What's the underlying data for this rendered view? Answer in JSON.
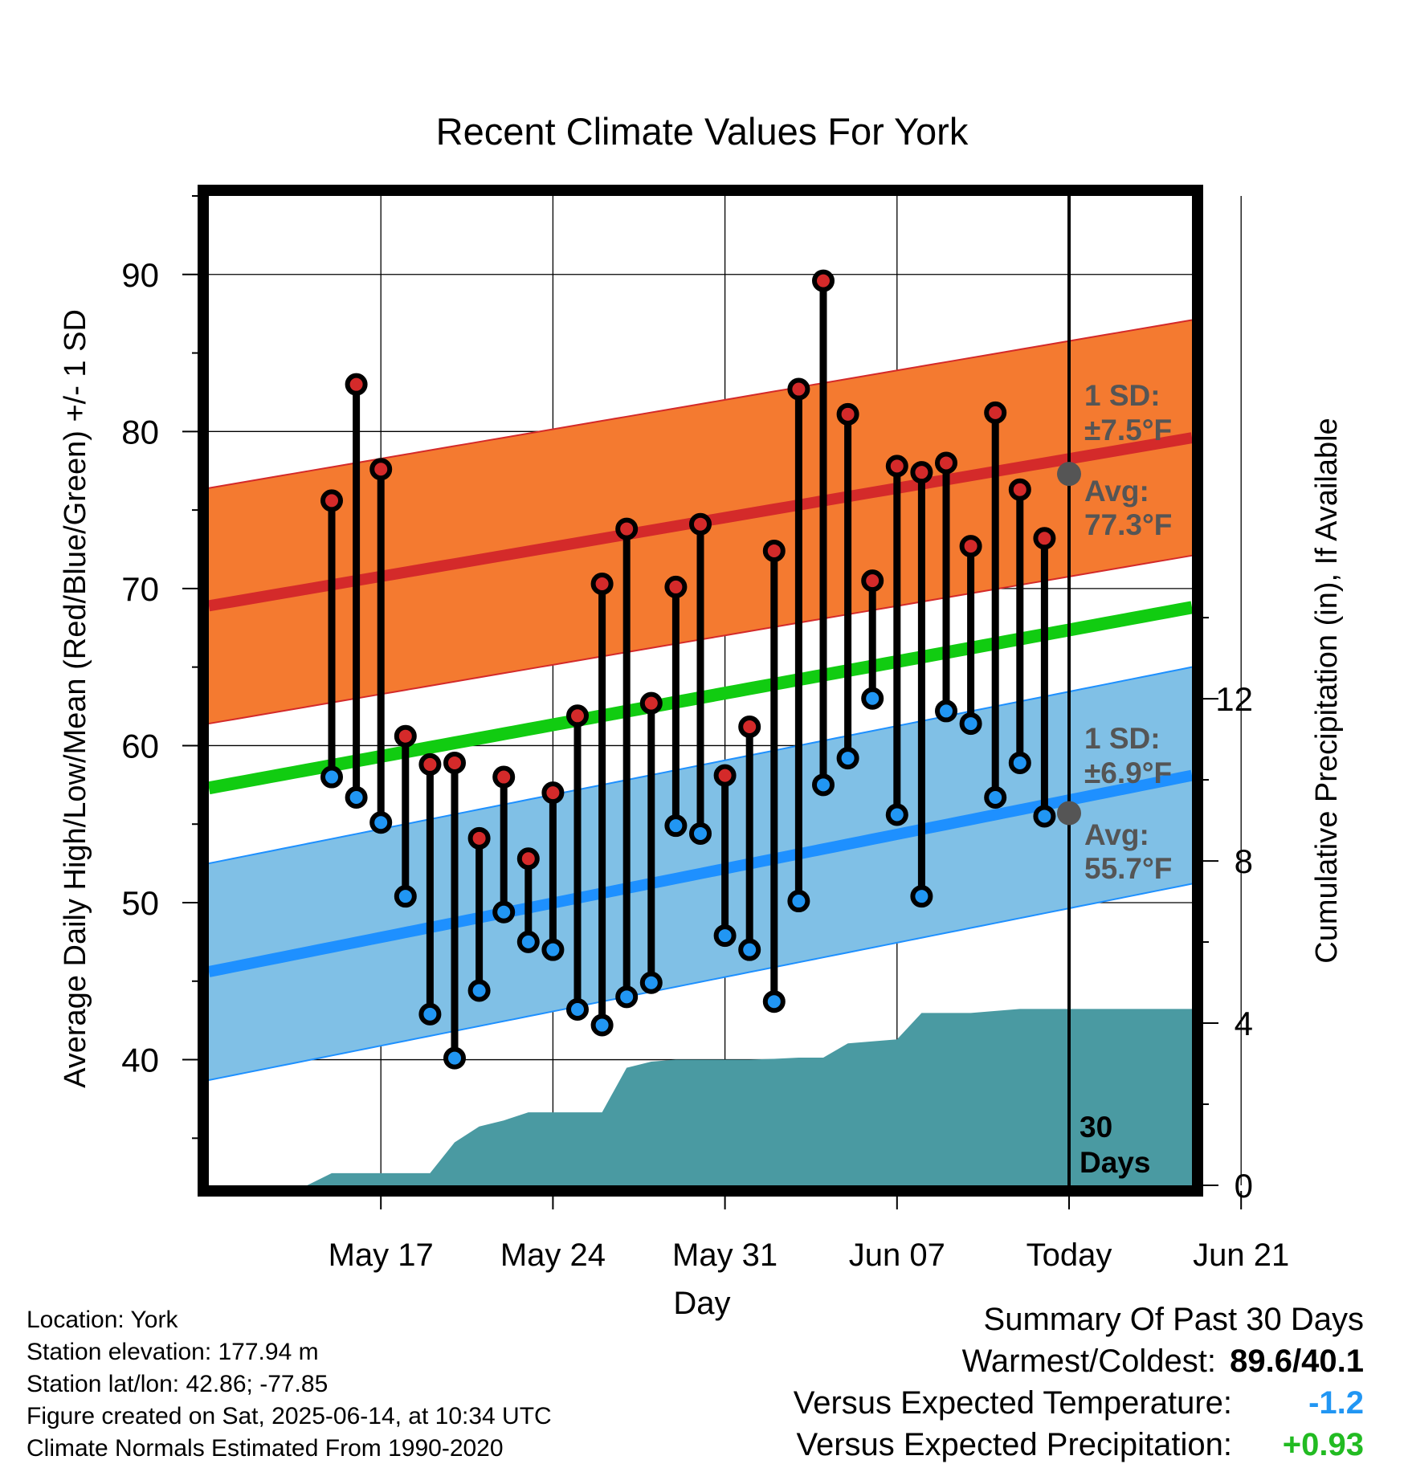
{
  "chart_data": {
    "type": "line",
    "title": "Recent Climate Values For York",
    "xlabel": "Day",
    "ylabel_left": "Average Daily High/Low/Mean (Red/Blue/Green) +/- 1 SD",
    "ylabel_right": "Cumulative Precipitation (in), If Available",
    "ylim_left": [
      32,
      95
    ],
    "ylim_right": [
      0,
      24.4
    ],
    "yticks_left": [
      40,
      50,
      60,
      70,
      80,
      90
    ],
    "yticks_right": [
      0,
      4,
      8,
      12
    ],
    "xlim_days": [
      -35,
      5
    ],
    "xticks": [
      {
        "day": -28,
        "label": "May 17"
      },
      {
        "day": -21,
        "label": "May 24"
      },
      {
        "day": -14,
        "label": "May 31"
      },
      {
        "day": -7,
        "label": "Jun 07"
      },
      {
        "day": 0,
        "label": "Today"
      },
      {
        "day": 7,
        "label": "Jun 21"
      }
    ],
    "daily_high": [
      75.6,
      83.0,
      77.6,
      60.6,
      58.8,
      58.9,
      54.1,
      58.0,
      52.8,
      57.0,
      61.9,
      70.3,
      73.8,
      62.7,
      70.1,
      74.1,
      58.1,
      61.2,
      72.4,
      82.7,
      89.6,
      81.1,
      70.5,
      77.8,
      77.4,
      78.0,
      72.7,
      81.2,
      76.3,
      73.2
    ],
    "daily_low": [
      58.0,
      56.7,
      55.1,
      50.4,
      42.9,
      40.1,
      44.4,
      49.4,
      47.5,
      47.0,
      43.2,
      42.2,
      44.0,
      44.9,
      54.9,
      54.4,
      47.9,
      47.0,
      43.7,
      50.1,
      57.5,
      59.2,
      63.0,
      55.6,
      50.4,
      62.2,
      61.4,
      56.7,
      58.9,
      55.5
    ],
    "normal_high": {
      "start": 68.9,
      "end": 79.6
    },
    "normal_high_sd": 7.5,
    "normal_low": {
      "start": 45.6,
      "end": 58.1
    },
    "normal_low_sd": 6.9,
    "normal_mean": {
      "start": 57.3,
      "end": 68.8
    },
    "cumulative_precip_days": [
      -34,
      -33,
      -32,
      -31,
      -30,
      -29,
      -28,
      -27,
      -26,
      -25,
      -24,
      -23,
      -22,
      -21,
      -20,
      -19,
      -18,
      -17,
      -16,
      -15,
      -14,
      -13,
      -12,
      -11,
      -10,
      -9,
      -8,
      -7,
      -6,
      -5,
      -4,
      -3,
      -2,
      -1,
      0,
      5
    ],
    "cumulative_precip": [
      0,
      0,
      0,
      0.0,
      0.3,
      0.3,
      0.3,
      0.3,
      0.3,
      1.06,
      1.45,
      1.6,
      1.8,
      1.8,
      1.8,
      1.8,
      2.9,
      3.05,
      3.1,
      3.1,
      3.1,
      3.1,
      3.12,
      3.15,
      3.15,
      3.5,
      3.55,
      3.6,
      4.25,
      4.25,
      4.25,
      4.3,
      4.35,
      4.35,
      4.35,
      4.35
    ],
    "annotations": {
      "high_sd_label": "1 SD:",
      "high_sd_value": "±7.5°F",
      "high_avg_label": "Avg:",
      "high_avg_value": "77.3°F",
      "today_high_avg": 77.3,
      "low_sd_label": "1 SD:",
      "low_sd_value": "±6.9°F",
      "low_avg_label": "Avg:",
      "low_avg_value": "55.7°F",
      "today_low_avg": 55.7,
      "period_label_1": "30",
      "period_label_2": "Days"
    },
    "colors": {
      "high_band": "#f47a30",
      "high_line": "#d42a2a",
      "low_band": "#80c0e6",
      "low_line": "#1e90ff",
      "mean_line": "#11cc11",
      "precip": "#4a9aa2",
      "high_marker": "#d42a2a",
      "low_marker": "#2196f3",
      "annotation": "#555555"
    }
  },
  "footer": {
    "location": "Location: York",
    "elevation": "Station elevation: 177.94 m",
    "latlon": "Station lat/lon: 42.86; -77.85",
    "created": "Figure created on Sat, 2025-06-14, at 10:34 UTC",
    "normals": "Climate Normals Estimated From 1990-2020"
  },
  "summary": {
    "title": "Summary Of Past 30 Days",
    "warmest_label": "Warmest/Coldest:",
    "warmest_value": "89.6/40.1",
    "temp_label": "Versus Expected Temperature:",
    "temp_value": "-1.2",
    "temp_color": "#2196f3",
    "precip_label": "Versus Expected Precipitation:",
    "precip_value": "+0.93",
    "precip_color": "#22bb22"
  }
}
